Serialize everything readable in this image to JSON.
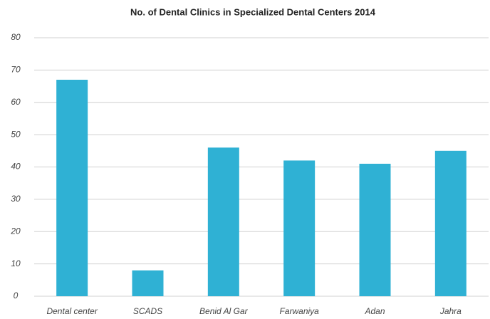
{
  "chart_data": {
    "type": "bar",
    "title": "No. of Dental Clinics in Specialized Dental Centers 2014",
    "categories": [
      "Dental center",
      "SCADS",
      "Benid Al Gar",
      "Farwaniya",
      "Adan",
      "Jahra"
    ],
    "values": [
      67,
      8,
      46,
      42,
      41,
      45
    ],
    "color": "#2fb1d4",
    "ylim": [
      0,
      80
    ],
    "yticks": [
      0,
      10,
      20,
      30,
      40,
      50,
      60,
      70,
      80
    ],
    "grid": true
  }
}
